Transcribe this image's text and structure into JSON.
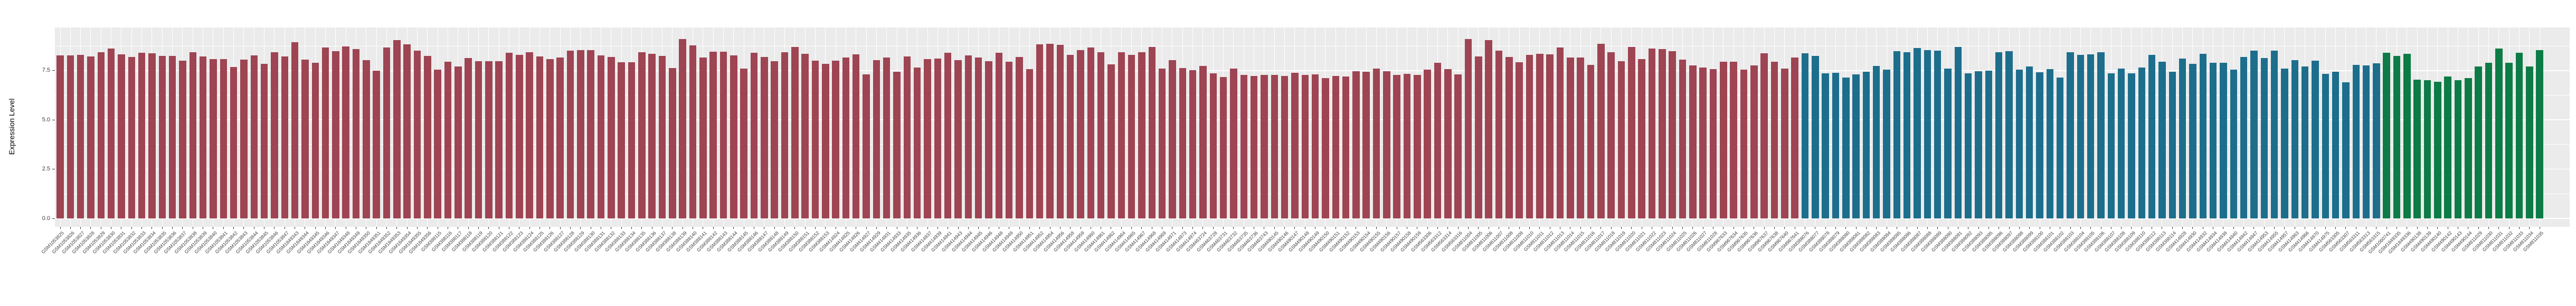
{
  "chart_data": {
    "type": "bar",
    "title": "",
    "xlabel": "",
    "ylabel": "Expression Level",
    "y_ticks": [
      "0.0",
      "2.5",
      "5.0",
      "7.5"
    ],
    "y_tick_values": [
      0,
      2.5,
      5.0,
      7.5
    ],
    "y_minor_values": [
      1.25,
      3.75,
      6.25,
      8.75
    ],
    "ylim": [
      0,
      9.68
    ],
    "grid": "white major+minor horizontal lines and per-bar vertical lines on gray panel",
    "legend_position": "none",
    "colors": {
      "panel_bg": "#EBEBEB",
      "grid": "#FFFFFF",
      "axis_text": "#404040",
      "group_red": "#9E4452",
      "group_blue": "#1C6E8C",
      "group_green": "#0C7B45"
    },
    "series": [
      {
        "name": "group-red",
        "color": "#9E4452",
        "bars": [
          [
            "GSM1053825",
            8.26
          ],
          [
            "GSM1053826",
            8.26
          ],
          [
            "GSM1053827",
            8.29
          ],
          [
            "GSM1053828",
            8.22
          ],
          [
            "GSM1053829",
            8.44
          ],
          [
            "GSM1053830",
            8.62
          ],
          [
            "GSM1053831",
            8.33
          ],
          [
            "GSM1053832",
            8.19
          ],
          [
            "GSM1053833",
            8.4
          ],
          [
            "GSM1053834",
            8.37
          ],
          [
            "GSM1053835",
            8.24
          ],
          [
            "GSM1053836",
            8.24
          ],
          [
            "GSM1053837",
            8.0
          ],
          [
            "GSM1053838",
            8.42
          ],
          [
            "GSM1053839",
            8.22
          ],
          [
            "GSM1053840",
            8.08
          ],
          [
            "GSM1053841",
            8.08
          ],
          [
            "GSM1053842",
            7.68
          ],
          [
            "GSM1053843",
            8.07
          ],
          [
            "GSM1053844",
            8.26
          ],
          [
            "GSM1053845",
            7.84
          ],
          [
            "GSM1053846",
            8.42
          ],
          [
            "GSM1053847",
            8.22
          ],
          [
            "GSM1849343",
            8.95
          ],
          [
            "GSM1849344",
            8.07
          ],
          [
            "GSM1849345",
            7.9
          ],
          [
            "GSM1849346",
            8.66
          ],
          [
            "GSM1849347",
            8.49
          ],
          [
            "GSM1849348",
            8.73
          ],
          [
            "GSM1849349",
            8.58
          ],
          [
            "GSM1849350",
            8.02
          ],
          [
            "GSM1849351",
            7.49
          ],
          [
            "GSM1849352",
            8.66
          ],
          [
            "GSM1849353",
            9.04
          ],
          [
            "GSM1849354",
            8.82
          ],
          [
            "GSM1849355",
            8.52
          ],
          [
            "GSM1849356",
            8.24
          ],
          [
            "GSM388115",
            7.55
          ],
          [
            "GSM388116",
            7.95
          ],
          [
            "GSM388117",
            7.7
          ],
          [
            "GSM388118",
            8.15
          ],
          [
            "GSM388119",
            7.98
          ],
          [
            "GSM388120",
            7.98
          ],
          [
            "GSM388121",
            7.98
          ],
          [
            "GSM388122",
            8.4
          ],
          [
            "GSM388123",
            8.31
          ],
          [
            "GSM388124",
            8.42
          ],
          [
            "GSM388125",
            8.22
          ],
          [
            "GSM388126",
            8.09
          ],
          [
            "GSM388127",
            8.16
          ],
          [
            "GSM388128",
            8.51
          ],
          [
            "GSM388129",
            8.54
          ],
          [
            "GSM388130",
            8.53
          ],
          [
            "GSM388131",
            8.26
          ],
          [
            "GSM388132",
            8.2
          ],
          [
            "GSM388133",
            7.93
          ],
          [
            "GSM388134",
            7.91
          ],
          [
            "GSM388135",
            8.42
          ],
          [
            "GSM388136",
            8.35
          ],
          [
            "GSM388137",
            8.24
          ],
          [
            "GSM388138",
            7.62
          ],
          [
            "GSM388139",
            9.11
          ],
          [
            "GSM388140",
            8.78
          ],
          [
            "GSM388141",
            8.17
          ],
          [
            "GSM388142",
            8.47
          ],
          [
            "GSM388143",
            8.45
          ],
          [
            "GSM388144",
            8.26
          ],
          [
            "GSM388145",
            7.6
          ],
          [
            "GSM388146",
            8.4
          ],
          [
            "GSM388147",
            8.2
          ],
          [
            "GSM388148",
            7.98
          ],
          [
            "GSM388149",
            8.42
          ],
          [
            "GSM388150",
            8.71
          ],
          [
            "GSM388151",
            8.35
          ],
          [
            "GSM388152",
            8.0
          ],
          [
            "GSM388153",
            7.84
          ],
          [
            "GSM414924",
            8.0
          ],
          [
            "GSM414925",
            8.17
          ],
          [
            "GSM414926",
            8.33
          ],
          [
            "GSM414927",
            7.31
          ],
          [
            "GSM414929",
            8.04
          ],
          [
            "GSM414931",
            8.16
          ],
          [
            "GSM414933",
            7.45
          ],
          [
            "GSM414935",
            8.22
          ],
          [
            "GSM414936",
            7.66
          ],
          [
            "GSM414937",
            8.08
          ],
          [
            "GSM414939",
            8.1
          ],
          [
            "GSM414941",
            8.4
          ],
          [
            "GSM414943",
            8.04
          ],
          [
            "GSM414944",
            8.26
          ],
          [
            "GSM414945",
            8.17
          ],
          [
            "GSM414946",
            7.98
          ],
          [
            "GSM414948",
            8.4
          ],
          [
            "GSM414949",
            7.96
          ],
          [
            "GSM414950",
            8.2
          ],
          [
            "GSM414951",
            7.58
          ],
          [
            "GSM414952",
            8.82
          ],
          [
            "GSM414954",
            8.87
          ],
          [
            "GSM414956",
            8.8
          ],
          [
            "GSM414958",
            8.29
          ],
          [
            "GSM414959",
            8.53
          ],
          [
            "GSM414960",
            8.66
          ],
          [
            "GSM414961",
            8.44
          ],
          [
            "GSM414962",
            7.82
          ],
          [
            "GSM414964",
            8.42
          ],
          [
            "GSM414965",
            8.29
          ],
          [
            "GSM414967",
            8.42
          ],
          [
            "GSM414968",
            8.71
          ],
          [
            "GSM414969",
            7.6
          ],
          [
            "GSM414971",
            8.02
          ],
          [
            "GSM414973",
            7.62
          ],
          [
            "GSM414974",
            7.51
          ],
          [
            "GSM463724",
            7.73
          ],
          [
            "GSM463728",
            7.35
          ],
          [
            "GSM463731",
            7.18
          ],
          [
            "GSM463732",
            7.59
          ],
          [
            "GSM463735",
            7.27
          ],
          [
            "GSM463736",
            7.24
          ],
          [
            "GSM463743",
            7.27
          ],
          [
            "GSM490145",
            7.27
          ],
          [
            "GSM490146",
            7.24
          ],
          [
            "GSM490147",
            7.4
          ],
          [
            "GSM490148",
            7.27
          ],
          [
            "GSM490149",
            7.3
          ],
          [
            "GSM490150",
            7.13
          ],
          [
            "GSM490151",
            7.24
          ],
          [
            "GSM490152",
            7.19
          ],
          [
            "GSM490153",
            7.46
          ],
          [
            "GSM490154",
            7.44
          ],
          [
            "GSM490155",
            7.6
          ],
          [
            "GSM490156",
            7.46
          ],
          [
            "GSM490157",
            7.28
          ],
          [
            "GSM490158",
            7.33
          ],
          [
            "GSM490159",
            7.28
          ],
          [
            "GSM563306",
            7.55
          ],
          [
            "GSM563312",
            7.9
          ],
          [
            "GSM563314",
            7.58
          ],
          [
            "GSM563316",
            7.31
          ],
          [
            "GSM811004",
            9.11
          ],
          [
            "GSM811005",
            8.22
          ],
          [
            "GSM811006",
            9.05
          ],
          [
            "GSM811007",
            8.51
          ],
          [
            "GSM811008",
            8.2
          ],
          [
            "GSM811009",
            7.93
          ],
          [
            "GSM811010",
            8.29
          ],
          [
            "GSM811011",
            8.35
          ],
          [
            "GSM811012",
            8.33
          ],
          [
            "GSM811013",
            8.66
          ],
          [
            "GSM811014",
            8.16
          ],
          [
            "GSM811015",
            8.16
          ],
          [
            "GSM811016",
            7.8
          ],
          [
            "GSM811017",
            8.85
          ],
          [
            "GSM811018",
            8.44
          ],
          [
            "GSM811019",
            7.98
          ],
          [
            "GSM811020",
            8.71
          ],
          [
            "GSM811021",
            8.08
          ],
          [
            "GSM811022",
            8.62
          ],
          [
            "GSM811023",
            8.58
          ],
          [
            "GSM811024",
            8.49
          ],
          [
            "GSM811025",
            8.07
          ],
          [
            "GSM811026",
            7.75
          ],
          [
            "GSM811027",
            7.66
          ],
          [
            "GSM811028",
            7.58
          ],
          [
            "GSM967633",
            7.96
          ],
          [
            "GSM967634",
            7.96
          ],
          [
            "GSM967635",
            7.55
          ],
          [
            "GSM967636",
            7.75
          ],
          [
            "GSM967637",
            8.38
          ],
          [
            "GSM967638",
            7.96
          ],
          [
            "GSM967640",
            7.59
          ],
          [
            "GSM967641",
            8.17
          ]
        ]
      },
      {
        "name": "group-blue",
        "color": "#1C6E8C",
        "bars": [
          [
            "GSM388076",
            8.38
          ],
          [
            "GSM388077",
            8.24
          ],
          [
            "GSM388078",
            7.37
          ],
          [
            "GSM388079",
            7.4
          ],
          [
            "GSM388080",
            7.16
          ],
          [
            "GSM388081",
            7.31
          ],
          [
            "GSM388082",
            7.44
          ],
          [
            "GSM388083",
            7.73
          ],
          [
            "GSM388084",
            7.55
          ],
          [
            "GSM388085",
            8.49
          ],
          [
            "GSM388086",
            8.42
          ],
          [
            "GSM388087",
            8.65
          ],
          [
            "GSM388088",
            8.53
          ],
          [
            "GSM388089",
            8.51
          ],
          [
            "GSM388090",
            7.59
          ],
          [
            "GSM388091",
            8.69
          ],
          [
            "GSM388092",
            7.35
          ],
          [
            "GSM388093",
            7.47
          ],
          [
            "GSM388095",
            7.49
          ],
          [
            "GSM388096",
            8.44
          ],
          [
            "GSM388097",
            8.49
          ],
          [
            "GSM388098",
            7.55
          ],
          [
            "GSM388099",
            7.71
          ],
          [
            "GSM388100",
            7.41
          ],
          [
            "GSM388101",
            7.58
          ],
          [
            "GSM388102",
            7.15
          ],
          [
            "GSM388103",
            8.42
          ],
          [
            "GSM388104",
            8.31
          ],
          [
            "GSM388105",
            8.33
          ],
          [
            "GSM388106",
            8.42
          ],
          [
            "GSM388107",
            7.37
          ],
          [
            "GSM388108",
            7.59
          ],
          [
            "GSM388109",
            7.37
          ],
          [
            "GSM388110",
            7.66
          ],
          [
            "GSM388112",
            8.3
          ],
          [
            "GSM388113",
            7.95
          ],
          [
            "GSM388114",
            7.45
          ],
          [
            "GSM414928",
            8.1
          ],
          [
            "GSM414930",
            7.85
          ],
          [
            "GSM414932",
            8.35
          ],
          [
            "GSM414934",
            7.9
          ],
          [
            "GSM414938",
            7.9
          ],
          [
            "GSM414940",
            7.55
          ],
          [
            "GSM414942",
            8.2
          ],
          [
            "GSM414947",
            8.5
          ],
          [
            "GSM414953",
            8.15
          ],
          [
            "GSM414955",
            8.5
          ],
          [
            "GSM414957",
            7.61
          ],
          [
            "GSM414963",
            8.02
          ],
          [
            "GSM414966",
            7.7
          ],
          [
            "GSM414970",
            7.99
          ],
          [
            "GSM414975",
            7.33
          ],
          [
            "GSM563305",
            7.43
          ],
          [
            "GSM563307",
            6.9
          ],
          [
            "GSM563311",
            7.79
          ],
          [
            "GSM563313",
            7.75
          ],
          [
            "GSM563315",
            7.88
          ]
        ]
      },
      {
        "name": "group-green",
        "color": "#0C7B45",
        "bars": [
          [
            "GSM1060741",
            8.4
          ],
          [
            "GSM1849335",
            8.25
          ],
          [
            "GSM1849336",
            8.35
          ],
          [
            "GSM490138",
            7.05
          ],
          [
            "GSM490139",
            7.0
          ],
          [
            "GSM490140",
            6.92
          ],
          [
            "GSM490142",
            7.2
          ],
          [
            "GSM490143",
            7.02
          ],
          [
            "GSM490144",
            7.12
          ],
          [
            "GSM811029",
            7.7
          ],
          [
            "GSM811030",
            7.9
          ],
          [
            "GSM811031",
            8.62
          ],
          [
            "GSM811032",
            7.9
          ],
          [
            "GSM811033",
            8.4
          ],
          [
            "GSM811034",
            7.7
          ],
          [
            "GSM811035",
            8.55
          ]
        ]
      }
    ]
  }
}
